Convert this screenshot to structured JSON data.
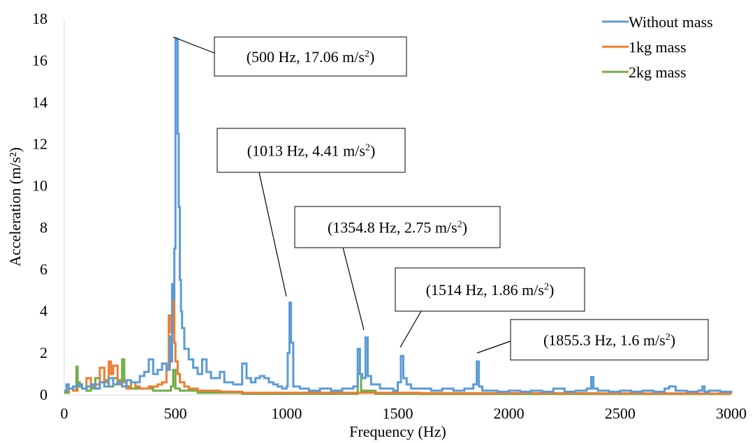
{
  "chart_data": {
    "type": "line",
    "title": "",
    "xlabel": "Frequency (Hz)",
    "ylabel": "Acceleration (m/s²)",
    "xlim": [
      0,
      3000
    ],
    "ylim": [
      0,
      18
    ],
    "xticks": [
      0,
      500,
      1000,
      1500,
      2000,
      2500,
      3000
    ],
    "yticks": [
      0,
      2,
      4,
      6,
      8,
      10,
      12,
      14,
      16,
      18
    ],
    "grid": false,
    "legend_position": "top-right",
    "series": [
      {
        "name": "Without mass",
        "color": "#5b9bd5",
        "x": [
          0,
          10,
          20,
          40,
          60,
          80,
          100,
          120,
          140,
          160,
          180,
          200,
          220,
          240,
          260,
          280,
          300,
          320,
          340,
          360,
          380,
          400,
          420,
          440,
          460,
          475,
          480,
          485,
          490,
          495,
          500,
          505,
          510,
          515,
          520,
          525,
          530,
          540,
          560,
          580,
          600,
          620,
          640,
          660,
          700,
          720,
          760,
          800,
          820,
          840,
          860,
          880,
          900,
          920,
          940,
          960,
          980,
          1000,
          1005,
          1013,
          1020,
          1030,
          1060,
          1100,
          1150,
          1200,
          1250,
          1300,
          1320,
          1330,
          1340,
          1354.8,
          1365,
          1380,
          1420,
          1480,
          1500,
          1514,
          1525,
          1540,
          1560,
          1600,
          1650,
          1700,
          1750,
          1800,
          1840,
          1855.3,
          1865,
          1880,
          1950,
          2000,
          2050,
          2100,
          2150,
          2200,
          2250,
          2300,
          2350,
          2370,
          2380,
          2400,
          2450,
          2500,
          2550,
          2600,
          2650,
          2700,
          2720,
          2750,
          2800,
          2850,
          2870,
          2880,
          2900,
          2950,
          3000
        ],
        "y": [
          0.2,
          0.5,
          0.3,
          0.4,
          0.5,
          0.3,
          0.4,
          0.5,
          0.3,
          0.6,
          0.4,
          0.8,
          0.5,
          0.6,
          0.4,
          0.7,
          0.6,
          0.6,
          0.9,
          1.1,
          1.7,
          1.0,
          1.2,
          1.5,
          1.2,
          2.8,
          1.6,
          5.3,
          4.6,
          7.0,
          17.06,
          17.0,
          12.5,
          9.0,
          5.5,
          4.0,
          3.2,
          2.2,
          1.7,
          1.3,
          1.0,
          1.7,
          1.1,
          0.8,
          1.1,
          0.6,
          0.5,
          1.5,
          0.8,
          0.6,
          0.8,
          0.9,
          0.8,
          0.6,
          0.5,
          0.4,
          0.3,
          0.4,
          2.0,
          4.41,
          2.5,
          0.4,
          0.3,
          0.2,
          0.3,
          0.2,
          0.3,
          0.4,
          2.2,
          1.0,
          0.8,
          2.75,
          0.9,
          0.5,
          0.3,
          0.2,
          0.6,
          1.86,
          0.8,
          0.5,
          0.3,
          0.3,
          0.2,
          0.3,
          0.2,
          0.3,
          0.5,
          1.6,
          0.4,
          0.2,
          0.15,
          0.2,
          0.15,
          0.2,
          0.15,
          0.3,
          0.15,
          0.2,
          0.3,
          0.85,
          0.3,
          0.2,
          0.15,
          0.2,
          0.15,
          0.2,
          0.15,
          0.3,
          0.4,
          0.2,
          0.15,
          0.2,
          0.4,
          0.15,
          0.2,
          0.15,
          0.1
        ]
      },
      {
        "name": "1kg mass",
        "color": "#ed7d31",
        "x": [
          0,
          20,
          40,
          60,
          80,
          100,
          120,
          140,
          160,
          180,
          200,
          210,
          220,
          240,
          260,
          280,
          300,
          320,
          340,
          360,
          380,
          400,
          420,
          440,
          460,
          470,
          480,
          490,
          495,
          500,
          510,
          520,
          540,
          560,
          600,
          700,
          800,
          1000,
          1200,
          1400,
          1600,
          1800,
          2000,
          2400,
          2800,
          3000
        ],
        "y": [
          0.2,
          0.3,
          0.2,
          0.5,
          0.3,
          0.8,
          0.4,
          0.5,
          1.3,
          0.6,
          1.6,
          1.0,
          1.4,
          0.5,
          0.6,
          0.3,
          0.6,
          0.4,
          0.3,
          0.3,
          0.4,
          0.4,
          0.5,
          0.6,
          1.3,
          3.8,
          3.0,
          4.8,
          2.5,
          1.6,
          1.0,
          0.6,
          0.4,
          0.3,
          0.2,
          0.15,
          0.1,
          0.1,
          0.1,
          0.1,
          0.08,
          0.08,
          0.08,
          0.07,
          0.06,
          0.05
        ]
      },
      {
        "name": "2kg mass",
        "color": "#70ad47",
        "x": [
          0,
          20,
          40,
          55,
          60,
          70,
          80,
          100,
          120,
          140,
          160,
          180,
          200,
          220,
          240,
          260,
          270,
          280,
          300,
          350,
          400,
          450,
          480,
          490,
          500,
          520,
          600,
          800,
          1000,
          1200,
          1300,
          1320,
          1335,
          1400,
          1600,
          2000,
          2500,
          3000
        ],
        "y": [
          0.1,
          0.3,
          0.2,
          1.35,
          0.6,
          0.4,
          0.3,
          0.2,
          0.3,
          0.8,
          0.6,
          0.7,
          0.4,
          0.8,
          0.7,
          1.7,
          0.6,
          0.4,
          0.3,
          0.3,
          0.2,
          0.2,
          0.4,
          1.2,
          0.3,
          0.2,
          0.1,
          0.05,
          0.05,
          0.05,
          0.05,
          1.0,
          0.2,
          0.05,
          0.04,
          0.04,
          0.04,
          0.04
        ]
      }
    ],
    "annotations": [
      {
        "text_before": "(500 Hz, 17.06 m/s",
        "sup": "2",
        "text_after": ")",
        "x": 500,
        "y": 17.06
      },
      {
        "text_before": "(1013 Hz, 4.41 m/s",
        "sup": "2",
        "text_after": ")",
        "x": 1013,
        "y": 4.41
      },
      {
        "text_before": "(1354.8 Hz, 2.75 m/s",
        "sup": "2",
        "text_after": ")",
        "x": 1354.8,
        "y": 2.75
      },
      {
        "text_before": "(1514 Hz, 1.86 m/s",
        "sup": "2",
        "text_after": ")",
        "x": 1514,
        "y": 1.86
      },
      {
        "text_before": "(1855.3 Hz, 1.6 m/s",
        "sup": "2",
        "text_after": ")",
        "x": 1855.3,
        "y": 1.6
      }
    ]
  }
}
